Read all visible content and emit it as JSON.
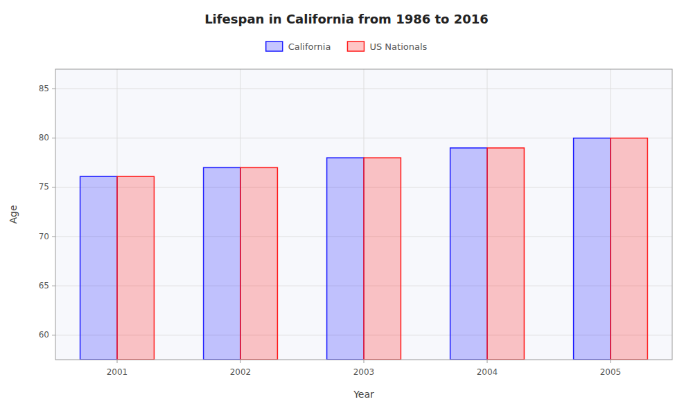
{
  "chart_data": {
    "type": "bar",
    "title": "Lifespan in California from 1986 to 2016",
    "x_label": "Year",
    "y_label": "Age",
    "categories": [
      "2001",
      "2002",
      "2003",
      "2004",
      "2005"
    ],
    "series": [
      {
        "name": "California",
        "color": "#1a1aff",
        "values": [
          76.1,
          77.0,
          78.0,
          79.0,
          80.0
        ]
      },
      {
        "name": "US Nationals",
        "color": "#ff1a1a",
        "values": [
          76.1,
          77.0,
          78.0,
          79.0,
          80.0
        ]
      }
    ],
    "ylim": [
      57.5,
      87
    ],
    "yticks": [
      60,
      65,
      70,
      75,
      80,
      85
    ],
    "grid": true,
    "legend": "top"
  }
}
